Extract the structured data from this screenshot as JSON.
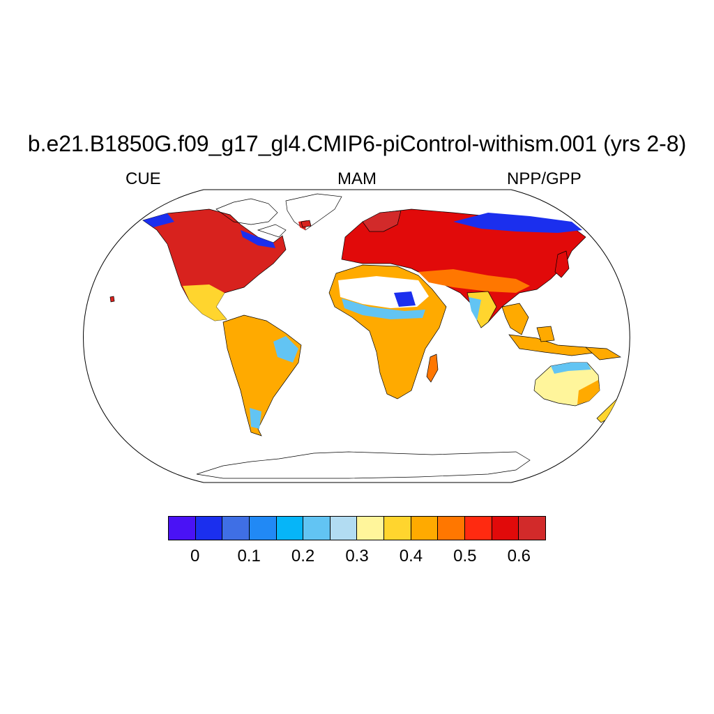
{
  "title": "b.e21.B1850G.f09_g17_gl4.CMIP6-piControl-withism.001 (yrs 2-8)",
  "subtitles": {
    "left": "CUE",
    "center": "MAM",
    "right": "NPP/GPP"
  },
  "colorbar": {
    "colors": [
      "#4a12f5",
      "#1b2fee",
      "#3f6fe5",
      "#2189f5",
      "#06b5f8",
      "#62c4f3",
      "#b2dcf2",
      "#fff59b",
      "#ffd52e",
      "#ffaa00",
      "#ff7700",
      "#ff2a10",
      "#e10a0a",
      "#d22a2a"
    ],
    "tick_labels": [
      "0",
      "0.1",
      "0.2",
      "0.3",
      "0.4",
      "0.5",
      "0.6"
    ]
  },
  "legend_colors": {
    "ocean": "#ffffff",
    "outline": "#000000"
  }
}
